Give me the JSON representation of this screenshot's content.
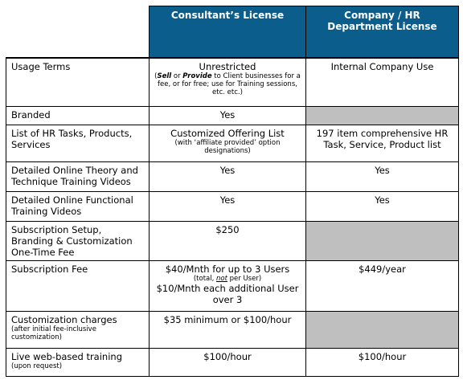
{
  "header": {
    "consultant": "Consultant’s License",
    "company": "Company / HR Department License"
  },
  "rows": [
    {
      "label": "Usage Terms",
      "consultant": "Unrestricted",
      "consultant_note": [
        "(",
        "Sell",
        " or ",
        "Provide",
        " to Client businesses for a fee, or for free; use for Training sessions, etc. etc.)"
      ],
      "company": "Internal Company Use"
    },
    {
      "label": "Branded",
      "consultant": "Yes"
    },
    {
      "label": "List of HR Tasks, Products, Services",
      "consultant": "Customized Offering List",
      "consultant_note": [
        "(with ‘affiliate provided’ option designations)"
      ],
      "company": "197 item comprehensive HR Task, Service, Product list"
    },
    {
      "label": "Detailed Online Theory and Technique Training Videos",
      "consultant": "Yes",
      "company": "Yes"
    },
    {
      "label": "Detailed Online Functional Training Videos",
      "consultant": "Yes",
      "company": "Yes"
    },
    {
      "label": "Subscription Setup, Branding & Customization One-Time Fee",
      "consultant": "$250"
    },
    {
      "label": "Subscription Fee",
      "consultant": "$40/Mnth for up to 3 Users",
      "consultant_note": [
        "(total, ",
        "not",
        " per User)"
      ],
      "consultant_extra": "$10/Mnth each additional User over 3",
      "company": "$449/year"
    },
    {
      "label": "Customization charges",
      "label_note": "(after initial fee-inclusive customization)",
      "consultant": "$35 minimum or $100/hour"
    },
    {
      "label": "Live web-based training",
      "label_note": "(upon request)",
      "consultant": "$100/hour",
      "company": "$100/hour"
    }
  ]
}
